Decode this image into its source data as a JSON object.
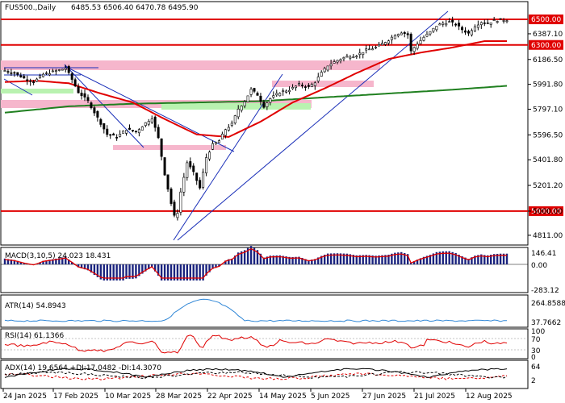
{
  "header": {
    "symbol": "FUS500.,Daily",
    "ohlc": "6485.53 6506.40 6470.78 6495.90"
  },
  "colors": {
    "bull": "#ffffff",
    "bear": "#000000",
    "wick": "#000000",
    "sma_fast": "#e00000",
    "sma_slow": "#208020",
    "levels": "#e00000",
    "trendline": "#1a2fb8",
    "supply_zone": "#f6b6cc",
    "demand_zone": "#b9f2b0",
    "macd_hist": "#1a237e",
    "macd_signal": "#e00000",
    "atr_line": "#2f86d6",
    "rsi_line": "#e00000",
    "adx_line": "#000000",
    "di_plus": "#000000",
    "di_minus": "#e00000"
  },
  "price_axis": {
    "ticks": [
      "6387.10",
      "6186.50",
      "5991.80",
      "5797.10",
      "5596.50",
      "5401.80",
      "5201.20",
      "5000.00",
      "4811.00"
    ]
  },
  "levels": [
    {
      "label": "6500.00",
      "value": 6500
    },
    {
      "label": "6300.00",
      "value": 6300
    },
    {
      "label": "5000.00",
      "value": 5000
    }
  ],
  "x_axis": {
    "labels": [
      "24 Jan 2025",
      "17 Feb 2025",
      "10 Mar 2025",
      "28 Mar 2025",
      "22 Apr 2025",
      "14 May 2025",
      "5 Jun 2025",
      "27 Jun 2025",
      "21 Jul 2025",
      "12 Aug 2025"
    ]
  },
  "indicators": {
    "macd": {
      "title": "MACD(3,10,5) 24.023 18.431",
      "axis": [
        "146.41",
        "0.00",
        "-283.12"
      ]
    },
    "atr": {
      "title": "ATR(14) 54.8943",
      "axis": [
        "264.8588",
        "37.7662"
      ]
    },
    "rsi": {
      "title": "RSI(14) 61.1366",
      "axis": [
        "100",
        "70",
        "30",
        "0"
      ]
    },
    "adx": {
      "title": "ADX(14) 19.6564 +DI:17.0482 -DI:14.3070",
      "axis": [
        "64",
        "2"
      ]
    }
  },
  "chart_data": {
    "type": "candlestick",
    "title": "FUS500.,Daily",
    "ylim": [
      4760,
      6620
    ],
    "n_bars": 158,
    "x_labels": [
      "24 Jan 2025",
      "17 Feb 2025",
      "10 Mar 2025",
      "28 Mar 2025",
      "22 Apr 2025",
      "14 May 2025",
      "5 Jun 2025",
      "27 Jun 2025",
      "21 Jul 2025",
      "12 Aug 2025"
    ],
    "close_path": [
      [
        0,
        6100
      ],
      [
        3,
        6080
      ],
      [
        6,
        6040
      ],
      [
        9,
        6010
      ],
      [
        12,
        6070
      ],
      [
        15,
        6090
      ],
      [
        18,
        6110
      ],
      [
        19,
        6120
      ],
      [
        21,
        6030
      ],
      [
        23,
        5930
      ],
      [
        26,
        5860
      ],
      [
        29,
        5730
      ],
      [
        32,
        5600
      ],
      [
        35,
        5580
      ],
      [
        38,
        5640
      ],
      [
        41,
        5620
      ],
      [
        44,
        5690
      ],
      [
        46,
        5730
      ],
      [
        48,
        5570
      ],
      [
        50,
        5290
      ],
      [
        52,
        5060
      ],
      [
        53,
        4960
      ],
      [
        54,
        4990
      ],
      [
        55,
        5150
      ],
      [
        57,
        5380
      ],
      [
        59,
        5300
      ],
      [
        61,
        5180
      ],
      [
        63,
        5420
      ],
      [
        65,
        5520
      ],
      [
        67,
        5550
      ],
      [
        69,
        5640
      ],
      [
        71,
        5680
      ],
      [
        73,
        5800
      ],
      [
        75,
        5860
      ],
      [
        77,
        5950
      ],
      [
        79,
        5910
      ],
      [
        81,
        5820
      ],
      [
        83,
        5880
      ],
      [
        86,
        5930
      ],
      [
        89,
        5950
      ],
      [
        92,
        5990
      ],
      [
        95,
        5970
      ],
      [
        97,
        6010
      ],
      [
        99,
        6080
      ],
      [
        101,
        6140
      ],
      [
        104,
        6180
      ],
      [
        107,
        6210
      ],
      [
        110,
        6220
      ],
      [
        113,
        6260
      ],
      [
        116,
        6280
      ],
      [
        118,
        6310
      ],
      [
        120,
        6340
      ],
      [
        122,
        6380
      ],
      [
        124,
        6400
      ],
      [
        126,
        6380
      ],
      [
        127,
        6250
      ],
      [
        129,
        6310
      ],
      [
        131,
        6360
      ],
      [
        133,
        6400
      ],
      [
        135,
        6450
      ],
      [
        137,
        6470
      ],
      [
        139,
        6480
      ],
      [
        141,
        6460
      ],
      [
        143,
        6420
      ],
      [
        145,
        6390
      ],
      [
        147,
        6450
      ],
      [
        149,
        6480
      ],
      [
        151,
        6470
      ],
      [
        153,
        6490
      ],
      [
        155,
        6496
      ]
    ],
    "sma_fast_path": [
      [
        0,
        6010
      ],
      [
        10,
        6020
      ],
      [
        20,
        6000
      ],
      [
        30,
        5920
      ],
      [
        40,
        5850
      ],
      [
        50,
        5720
      ],
      [
        60,
        5600
      ],
      [
        70,
        5580
      ],
      [
        80,
        5700
      ],
      [
        90,
        5850
      ],
      [
        100,
        5960
      ],
      [
        110,
        6080
      ],
      [
        120,
        6190
      ],
      [
        130,
        6240
      ],
      [
        140,
        6280
      ],
      [
        150,
        6330
      ]
    ],
    "sma_slow_path": [
      [
        0,
        5770
      ],
      [
        20,
        5820
      ],
      [
        40,
        5840
      ],
      [
        60,
        5850
      ],
      [
        80,
        5860
      ],
      [
        100,
        5890
      ],
      [
        120,
        5920
      ],
      [
        140,
        5950
      ],
      [
        157,
        5980
      ]
    ]
  }
}
